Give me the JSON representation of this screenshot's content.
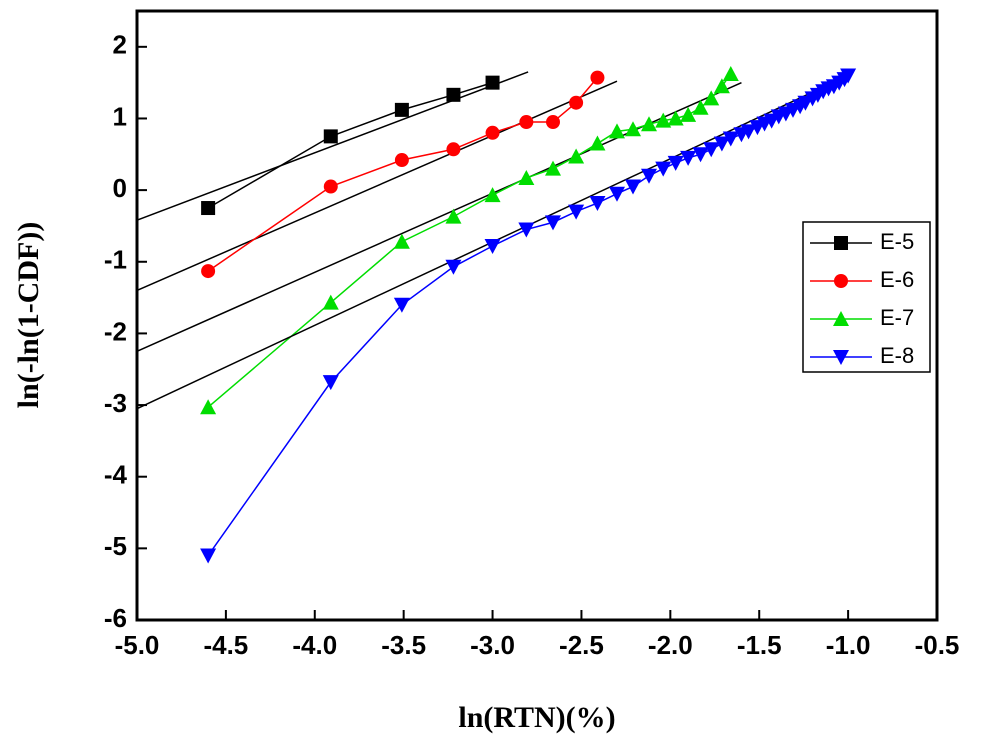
{
  "chart_data": {
    "type": "line",
    "x_label": "ln(RTN)(%)",
    "y_label": "ln(-ln(1-CDF))",
    "xlim": [
      -5.0,
      -0.5
    ],
    "ylim": [
      -6,
      2.5
    ],
    "xticks": [
      {
        "value": -5,
        "label": "-5.0"
      },
      -4.5,
      {
        "value": -4,
        "label": "-4.0"
      },
      -3.5,
      {
        "value": -3,
        "label": "-3.0"
      },
      -2.5,
      {
        "value": -2,
        "label": "-2.0"
      },
      -1.5,
      {
        "value": -1,
        "label": "-1.0"
      },
      -0.5
    ],
    "yticks": [
      -6,
      -5,
      -4,
      -3,
      -2,
      -1,
      0,
      1,
      2
    ],
    "legend": "right",
    "fit_color": "#000000",
    "series": [
      {
        "name": "E-5",
        "color": "#000000",
        "marker": "square",
        "x": [
          -4.6,
          -3.91,
          -3.51,
          -3.22,
          -3.0
        ],
        "values": [
          -0.25,
          0.75,
          1.12,
          1.33,
          1.5
        ],
        "fit": {
          "x": [
            -5.0,
            -2.8
          ],
          "y": [
            -0.42,
            1.65
          ]
        }
      },
      {
        "name": "E-6",
        "color": "#ff0000",
        "marker": "circle",
        "x": [
          -4.6,
          -3.91,
          -3.51,
          -3.22,
          -3.0,
          -2.81,
          -2.66,
          -2.53,
          -2.41
        ],
        "values": [
          -1.13,
          0.05,
          0.42,
          0.57,
          0.8,
          0.95,
          0.95,
          1.22,
          1.57
        ],
        "fit": {
          "x": [
            -5.0,
            -2.3
          ],
          "y": [
            -1.4,
            1.52
          ]
        }
      },
      {
        "name": "E-7",
        "color": "#00dd00",
        "marker": "triangle-up",
        "x": [
          -4.6,
          -3.91,
          -3.51,
          -3.22,
          -3.0,
          -2.81,
          -2.66,
          -2.53,
          -2.41,
          -2.3,
          -2.21,
          -2.12,
          -2.04,
          -1.97,
          -1.9,
          -1.83,
          -1.77,
          -1.71,
          -1.66
        ],
        "values": [
          -3.03,
          -1.57,
          -0.72,
          -0.37,
          -0.07,
          0.17,
          0.3,
          0.47,
          0.65,
          0.82,
          0.85,
          0.92,
          0.97,
          1.0,
          1.05,
          1.15,
          1.28,
          1.45,
          1.62
        ],
        "fit": {
          "x": [
            -5.0,
            -1.6
          ],
          "y": [
            -2.25,
            1.5
          ]
        }
      },
      {
        "name": "E-8",
        "color": "#0000ff",
        "marker": "triangle-down",
        "x": [
          -4.6,
          -3.91,
          -3.51,
          -3.22,
          -3.0,
          -2.81,
          -2.66,
          -2.53,
          -2.41,
          -2.3,
          -2.21,
          -2.12,
          -2.04,
          -1.97,
          -1.9,
          -1.83,
          -1.77,
          -1.71,
          -1.66,
          -1.6,
          -1.56,
          -1.51,
          -1.47,
          -1.43,
          -1.39,
          -1.35,
          -1.31,
          -1.27,
          -1.24,
          -1.2,
          -1.17,
          -1.14,
          -1.11,
          -1.08,
          -1.05,
          -1.02,
          -1.0
        ],
        "values": [
          -5.1,
          -2.68,
          -1.6,
          -1.07,
          -0.78,
          -0.55,
          -0.45,
          -0.3,
          -0.18,
          -0.05,
          0.05,
          0.2,
          0.3,
          0.38,
          0.45,
          0.5,
          0.57,
          0.65,
          0.72,
          0.78,
          0.82,
          0.88,
          0.93,
          0.97,
          1.03,
          1.07,
          1.12,
          1.17,
          1.22,
          1.28,
          1.33,
          1.38,
          1.42,
          1.45,
          1.5,
          1.55,
          1.6
        ],
        "fit": {
          "x": [
            -5.0,
            -1.0
          ],
          "y": [
            -3.05,
            1.6
          ]
        }
      }
    ]
  }
}
